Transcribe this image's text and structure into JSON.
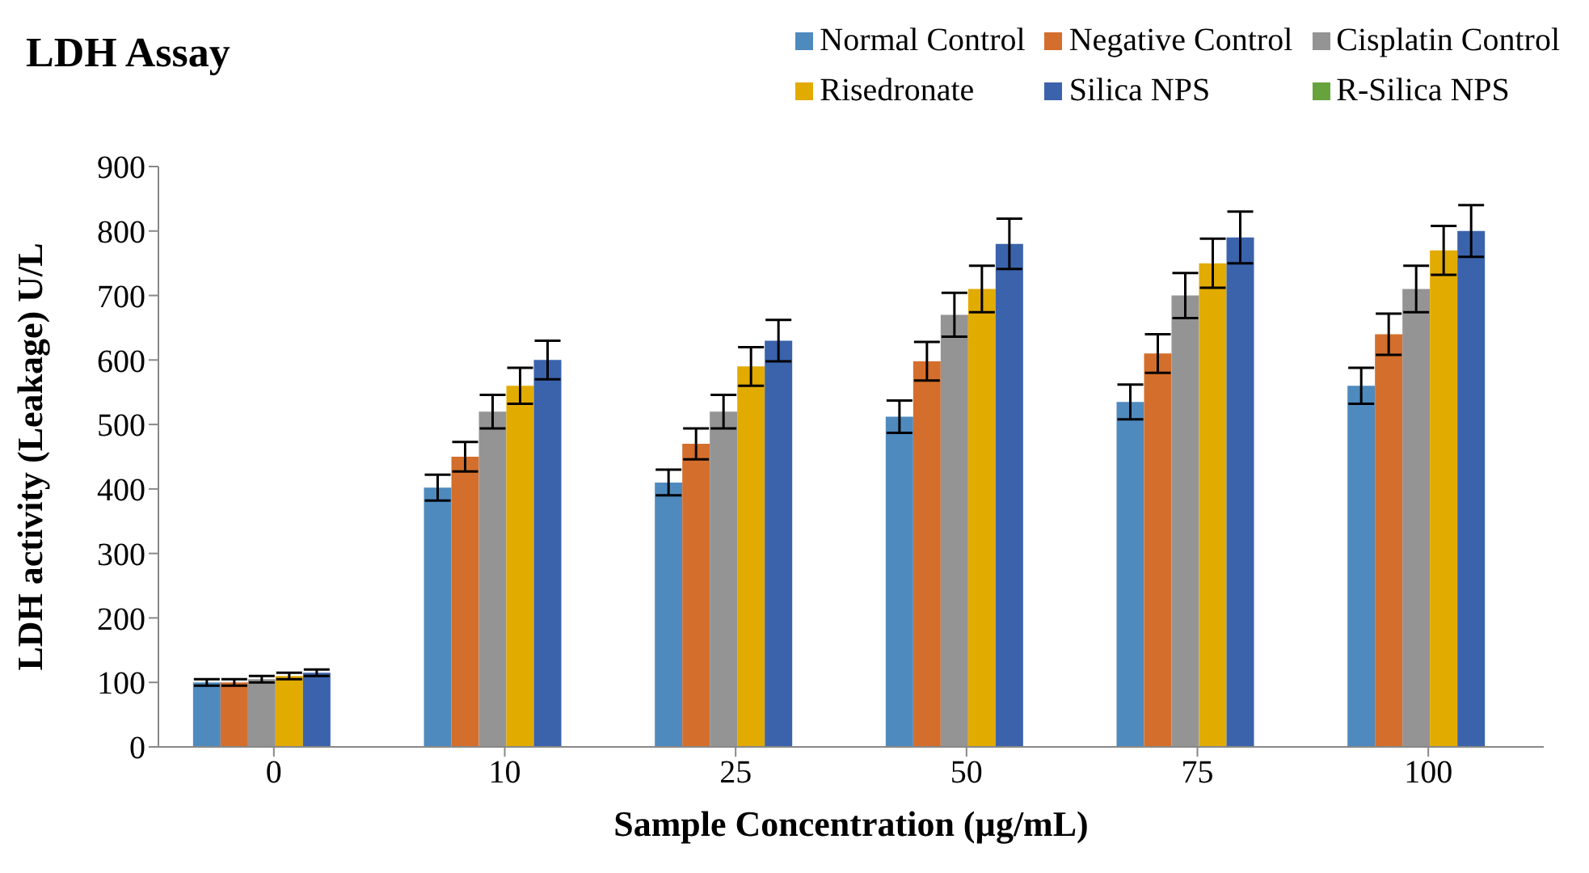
{
  "chart_data": {
    "type": "bar",
    "title": "LDH Assay",
    "xlabel": "Sample Concentration (µg/mL)",
    "ylabel": "LDH activity (Leakage) U/L",
    "categories": [
      "0",
      "10",
      "25",
      "50",
      "75",
      "100"
    ],
    "series": [
      {
        "name": "Normal Control",
        "color": "#4f8abe",
        "values": [
          100,
          402,
          410,
          512,
          535,
          560
        ],
        "errors": [
          5,
          20,
          20,
          25,
          27,
          28
        ]
      },
      {
        "name": "Negative Control",
        "color": "#d46e2c",
        "values": [
          100,
          450,
          470,
          598,
          610,
          640
        ],
        "errors": [
          5,
          23,
          24,
          30,
          30,
          32
        ]
      },
      {
        "name": "Cisplatin Control",
        "color": "#949494",
        "values": [
          105,
          520,
          520,
          670,
          700,
          710
        ],
        "errors": [
          5,
          26,
          26,
          34,
          35,
          36
        ]
      },
      {
        "name": "Risedronate",
        "color": "#e2ab00",
        "values": [
          110,
          560,
          590,
          710,
          750,
          770
        ],
        "errors": [
          5,
          28,
          30,
          36,
          38,
          38
        ]
      },
      {
        "name": "Silica NPS",
        "color": "#3b63ac",
        "values": [
          115,
          600,
          630,
          780,
          790,
          800
        ],
        "errors": [
          5,
          30,
          32,
          39,
          40,
          40
        ]
      },
      {
        "name": "R-Silica NPS",
        "color": "#67a33d",
        "values": [
          0,
          0,
          0,
          0,
          0,
          0
        ]
      }
    ],
    "ylim": [
      0,
      900
    ],
    "yticks": [
      0,
      100,
      200,
      300,
      400,
      500,
      600,
      700,
      800,
      900
    ],
    "legend": "top right"
  }
}
